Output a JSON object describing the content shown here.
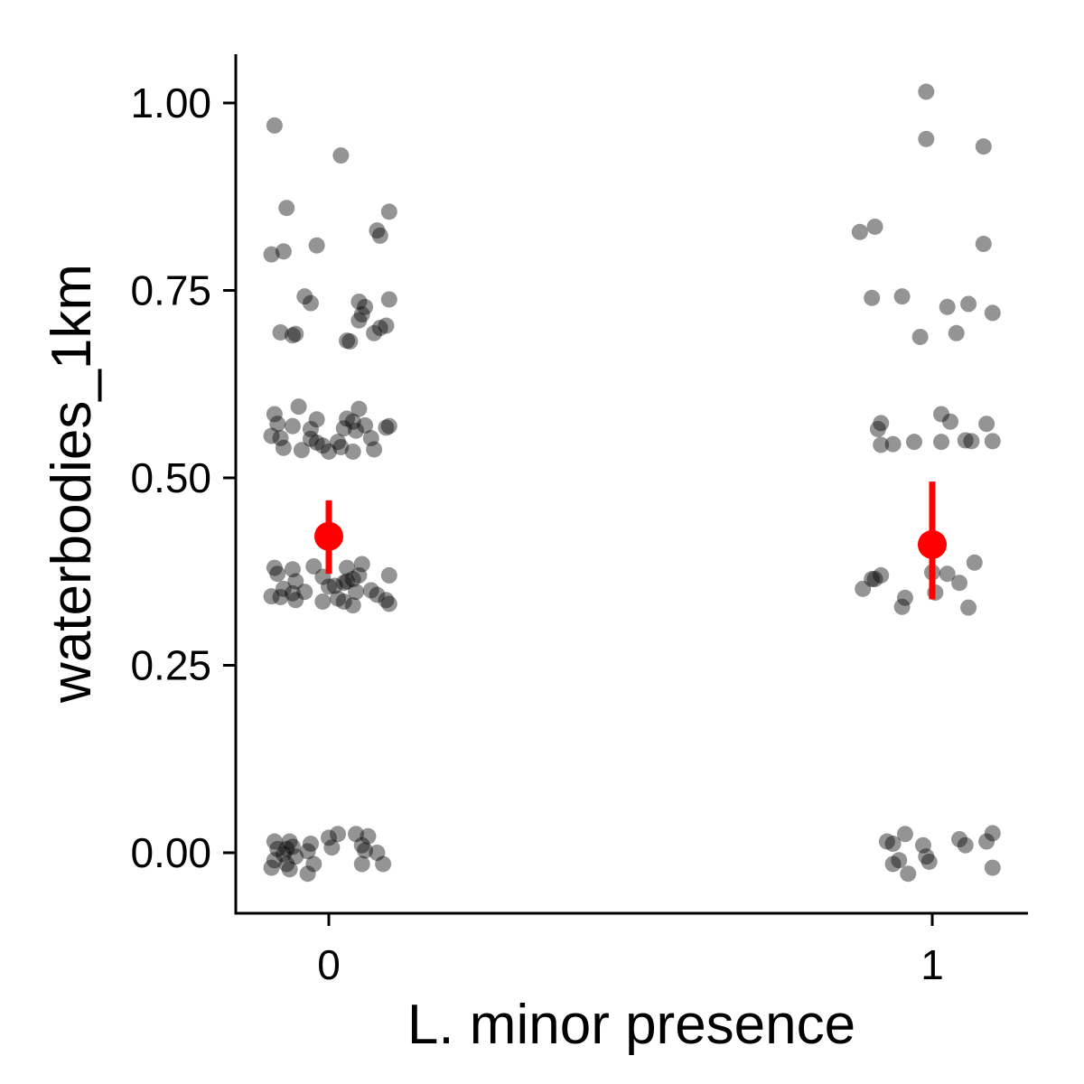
{
  "chart_data": {
    "type": "scatter",
    "title": "",
    "xlabel": "L. minor presence",
    "ylabel": "waterbodies_1km",
    "x_categories": [
      "0",
      "1"
    ],
    "yticks": [
      "0.00",
      "0.25",
      "0.50",
      "0.75",
      "1.00"
    ],
    "ytick_values": [
      0,
      0.25,
      0.5,
      0.75,
      1.0
    ],
    "ylim": [
      -0.08,
      1.065
    ],
    "grid": false,
    "legend": "none",
    "colors": {
      "points": "#000000",
      "summary": "#ff0000"
    },
    "points": [
      {
        "x": -0.09,
        "y": 0.97
      },
      {
        "x": 0.02,
        "y": 0.93
      },
      {
        "x": -0.07,
        "y": 0.86
      },
      {
        "x": 0.1,
        "y": 0.855
      },
      {
        "x": 0.08,
        "y": 0.83
      },
      {
        "x": 0.085,
        "y": 0.823
      },
      {
        "x": -0.02,
        "y": 0.81
      },
      {
        "x": -0.075,
        "y": 0.802
      },
      {
        "x": -0.095,
        "y": 0.798
      },
      {
        "x": -0.04,
        "y": 0.742
      },
      {
        "x": -0.03,
        "y": 0.733
      },
      {
        "x": 0.05,
        "y": 0.735
      },
      {
        "x": 0.1,
        "y": 0.738
      },
      {
        "x": 0.06,
        "y": 0.728
      },
      {
        "x": 0.055,
        "y": 0.718
      },
      {
        "x": 0.05,
        "y": 0.71
      },
      {
        "x": 0.095,
        "y": 0.703
      },
      {
        "x": 0.085,
        "y": 0.7
      },
      {
        "x": 0.075,
        "y": 0.693
      },
      {
        "x": -0.08,
        "y": 0.694
      },
      {
        "x": -0.06,
        "y": 0.69
      },
      {
        "x": -0.055,
        "y": 0.692
      },
      {
        "x": 0.03,
        "y": 0.683
      },
      {
        "x": 0.035,
        "y": 0.682
      },
      {
        "x": -0.05,
        "y": 0.595
      },
      {
        "x": 0.05,
        "y": 0.592
      },
      {
        "x": -0.09,
        "y": 0.585
      },
      {
        "x": 0.03,
        "y": 0.579
      },
      {
        "x": -0.02,
        "y": 0.578
      },
      {
        "x": 0.04,
        "y": 0.575
      },
      {
        "x": -0.085,
        "y": 0.572
      },
      {
        "x": 0.06,
        "y": 0.57
      },
      {
        "x": 0.1,
        "y": 0.569
      },
      {
        "x": 0.095,
        "y": 0.567
      },
      {
        "x": -0.06,
        "y": 0.569
      },
      {
        "x": -0.03,
        "y": 0.565
      },
      {
        "x": 0.025,
        "y": 0.566
      },
      {
        "x": 0.045,
        "y": 0.563
      },
      {
        "x": -0.095,
        "y": 0.556
      },
      {
        "x": -0.08,
        "y": 0.553
      },
      {
        "x": 0.07,
        "y": 0.553
      },
      {
        "x": -0.03,
        "y": 0.552
      },
      {
        "x": 0.015,
        "y": 0.548
      },
      {
        "x": -0.02,
        "y": 0.547
      },
      {
        "x": -0.01,
        "y": 0.543
      },
      {
        "x": 0.02,
        "y": 0.541
      },
      {
        "x": -0.075,
        "y": 0.54
      },
      {
        "x": -0.045,
        "y": 0.537
      },
      {
        "x": 0.0,
        "y": 0.535
      },
      {
        "x": 0.04,
        "y": 0.535
      },
      {
        "x": 0.075,
        "y": 0.538
      },
      {
        "x": 0.055,
        "y": 0.385
      },
      {
        "x": -0.09,
        "y": 0.38
      },
      {
        "x": -0.025,
        "y": 0.382
      },
      {
        "x": -0.06,
        "y": 0.378
      },
      {
        "x": 0.03,
        "y": 0.38
      },
      {
        "x": -0.085,
        "y": 0.372
      },
      {
        "x": 0.1,
        "y": 0.37
      },
      {
        "x": 0.05,
        "y": 0.37
      },
      {
        "x": -0.01,
        "y": 0.368
      },
      {
        "x": 0.04,
        "y": 0.365
      },
      {
        "x": 0.03,
        "y": 0.362
      },
      {
        "x": -0.055,
        "y": 0.362
      },
      {
        "x": 0.025,
        "y": 0.36
      },
      {
        "x": 0.01,
        "y": 0.356
      },
      {
        "x": 0.0,
        "y": 0.355
      },
      {
        "x": -0.075,
        "y": 0.352
      },
      {
        "x": 0.07,
        "y": 0.35
      },
      {
        "x": -0.04,
        "y": 0.348
      },
      {
        "x": 0.045,
        "y": 0.348
      },
      {
        "x": -0.06,
        "y": 0.346
      },
      {
        "x": 0.08,
        "y": 0.344
      },
      {
        "x": -0.095,
        "y": 0.342
      },
      {
        "x": -0.08,
        "y": 0.341
      },
      {
        "x": 0.015,
        "y": 0.339
      },
      {
        "x": -0.055,
        "y": 0.337
      },
      {
        "x": 0.095,
        "y": 0.337
      },
      {
        "x": -0.01,
        "y": 0.335
      },
      {
        "x": 0.025,
        "y": 0.335
      },
      {
        "x": 0.1,
        "y": 0.332
      },
      {
        "x": 0.04,
        "y": 0.33
      },
      {
        "x": 0.015,
        "y": 0.025
      },
      {
        "x": 0.045,
        "y": 0.025
      },
      {
        "x": 0.065,
        "y": 0.022
      },
      {
        "x": 0.0,
        "y": 0.02
      },
      {
        "x": -0.09,
        "y": 0.015
      },
      {
        "x": -0.065,
        "y": 0.015
      },
      {
        "x": -0.03,
        "y": 0.012
      },
      {
        "x": 0.055,
        "y": 0.01
      },
      {
        "x": -0.06,
        "y": 0.008
      },
      {
        "x": 0.005,
        "y": 0.007
      },
      {
        "x": -0.085,
        "y": 0.005
      },
      {
        "x": -0.07,
        "y": 0.005
      },
      {
        "x": 0.06,
        "y": 0.003
      },
      {
        "x": -0.035,
        "y": 0.002
      },
      {
        "x": 0.08,
        "y": 0.0
      },
      {
        "x": -0.075,
        "y": -0.002
      },
      {
        "x": -0.055,
        "y": -0.005
      },
      {
        "x": -0.09,
        "y": -0.01
      },
      {
        "x": -0.025,
        "y": -0.015
      },
      {
        "x": -0.07,
        "y": -0.015
      },
      {
        "x": 0.055,
        "y": -0.015
      },
      {
        "x": 0.09,
        "y": -0.015
      },
      {
        "x": -0.095,
        "y": -0.02
      },
      {
        "x": -0.065,
        "y": -0.022
      },
      {
        "x": -0.035,
        "y": -0.028
      },
      {
        "x": 0.99,
        "y": 1.015
      },
      {
        "x": 0.99,
        "y": 0.952
      },
      {
        "x": 1.085,
        "y": 0.942
      },
      {
        "x": 0.905,
        "y": 0.835
      },
      {
        "x": 0.88,
        "y": 0.828
      },
      {
        "x": 1.085,
        "y": 0.812
      },
      {
        "x": 0.95,
        "y": 0.742
      },
      {
        "x": 0.9,
        "y": 0.74
      },
      {
        "x": 1.06,
        "y": 0.732
      },
      {
        "x": 1.025,
        "y": 0.728
      },
      {
        "x": 1.1,
        "y": 0.72
      },
      {
        "x": 1.04,
        "y": 0.693
      },
      {
        "x": 0.98,
        "y": 0.688
      },
      {
        "x": 1.015,
        "y": 0.585
      },
      {
        "x": 0.915,
        "y": 0.573
      },
      {
        "x": 1.03,
        "y": 0.575
      },
      {
        "x": 1.09,
        "y": 0.572
      },
      {
        "x": 0.91,
        "y": 0.565
      },
      {
        "x": 1.055,
        "y": 0.55
      },
      {
        "x": 1.065,
        "y": 0.549
      },
      {
        "x": 1.1,
        "y": 0.549
      },
      {
        "x": 0.97,
        "y": 0.548
      },
      {
        "x": 1.015,
        "y": 0.548
      },
      {
        "x": 0.935,
        "y": 0.545
      },
      {
        "x": 0.915,
        "y": 0.544
      },
      {
        "x": 1.07,
        "y": 0.387
      },
      {
        "x": 1.0,
        "y": 0.374
      },
      {
        "x": 1.025,
        "y": 0.372
      },
      {
        "x": 0.9,
        "y": 0.365
      },
      {
        "x": 0.915,
        "y": 0.37
      },
      {
        "x": 0.905,
        "y": 0.365
      },
      {
        "x": 1.045,
        "y": 0.36
      },
      {
        "x": 0.885,
        "y": 0.352
      },
      {
        "x": 1.005,
        "y": 0.347
      },
      {
        "x": 0.955,
        "y": 0.34
      },
      {
        "x": 0.95,
        "y": 0.328
      },
      {
        "x": 1.06,
        "y": 0.327
      },
      {
        "x": 1.1,
        "y": 0.026
      },
      {
        "x": 0.955,
        "y": 0.025
      },
      {
        "x": 1.045,
        "y": 0.018
      },
      {
        "x": 1.09,
        "y": 0.015
      },
      {
        "x": 0.925,
        "y": 0.015
      },
      {
        "x": 0.935,
        "y": 0.012
      },
      {
        "x": 1.055,
        "y": 0.01
      },
      {
        "x": 0.985,
        "y": 0.01
      },
      {
        "x": 0.99,
        "y": -0.005
      },
      {
        "x": 0.945,
        "y": -0.01
      },
      {
        "x": 0.995,
        "y": -0.012
      },
      {
        "x": 0.935,
        "y": -0.015
      },
      {
        "x": 1.1,
        "y": -0.02
      },
      {
        "x": 0.96,
        "y": -0.028
      }
    ],
    "summary": [
      {
        "x": 0,
        "mean": 0.422,
        "lower": 0.372,
        "upper": 0.47
      },
      {
        "x": 1,
        "mean": 0.411,
        "lower": 0.338,
        "upper": 0.495
      }
    ]
  }
}
